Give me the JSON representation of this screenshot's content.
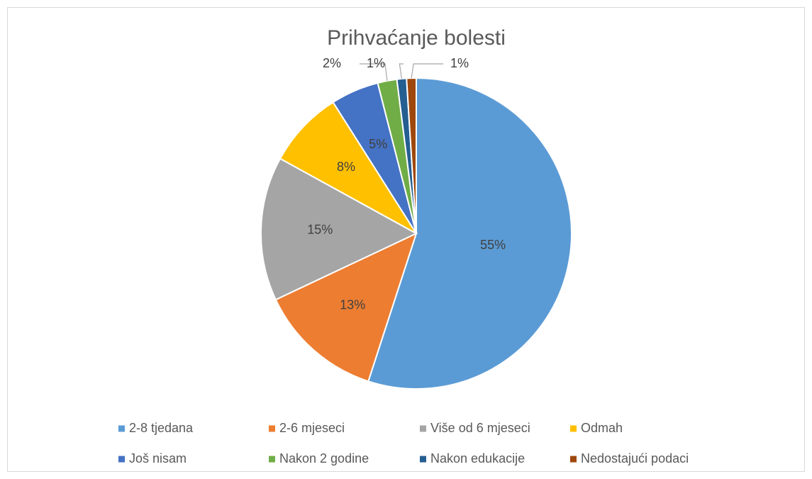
{
  "chart_data": {
    "type": "pie",
    "title": "Prihvaćanje bolesti",
    "categories": [
      "2-8 tjedana",
      "2-6 mjeseci",
      "Više od 6 mjeseci",
      "Odmah",
      "Još nisam",
      "Nakon 2 godine",
      "Nakon edukacije",
      "Nedostajući podaci"
    ],
    "values": [
      55,
      13,
      15,
      8,
      5,
      2,
      1,
      1
    ],
    "value_labels": [
      "55%",
      "13%",
      "15%",
      "8%",
      "5%",
      "2%",
      "1%",
      "1%"
    ],
    "colors": [
      "#5b9bd5",
      "#ed7d31",
      "#a5a5a5",
      "#ffc000",
      "#4472c4",
      "#70ad47",
      "#255e91",
      "#9e480e"
    ],
    "legend": "bottom"
  }
}
